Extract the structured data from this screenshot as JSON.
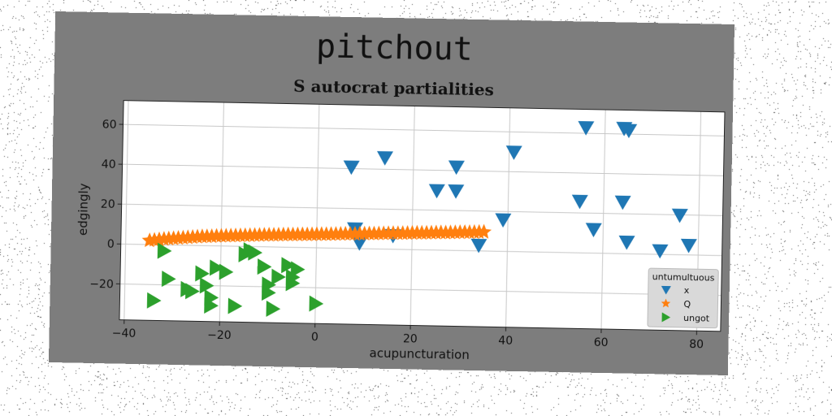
{
  "figure": {
    "suptitle": "pitchout"
  },
  "chart_data": {
    "type": "scatter",
    "title": "S autocrat partialities",
    "xlabel": "acupuncturation",
    "ylabel": "edgingly",
    "xlim": [
      -41,
      85
    ],
    "ylim": [
      -38,
      72
    ],
    "xticks": [
      -40,
      -20,
      0,
      20,
      40,
      60,
      80
    ],
    "yticks": [
      -20,
      0,
      20,
      40,
      60
    ],
    "grid": true,
    "legend": {
      "title": "untumultuous",
      "position": "bottom-right"
    },
    "series": [
      {
        "name": "x",
        "marker": "triangle-down",
        "color": "#1f77b4",
        "points": [
          [
            7,
            41
          ],
          [
            14,
            46
          ],
          [
            8,
            10
          ],
          [
            9,
            3
          ],
          [
            16,
            7
          ],
          [
            25,
            30
          ],
          [
            29,
            30
          ],
          [
            29,
            42
          ],
          [
            34,
            3
          ],
          [
            39,
            16
          ],
          [
            41,
            50
          ],
          [
            55,
            26
          ],
          [
            56,
            63
          ],
          [
            58,
            12
          ],
          [
            64,
            26
          ],
          [
            64,
            63
          ],
          [
            65,
            62
          ],
          [
            65,
            6
          ],
          [
            72,
            2
          ],
          [
            76,
            20
          ],
          [
            78,
            5
          ]
        ]
      },
      {
        "name": "Q",
        "marker": "star",
        "color": "#ff7f0e",
        "points": [
          [
            -35,
            2
          ],
          [
            -34,
            2.3
          ],
          [
            -33,
            2.6
          ],
          [
            -32,
            2.9
          ],
          [
            -31,
            3.1
          ],
          [
            -30,
            3.3
          ],
          [
            -29,
            3.5
          ],
          [
            -28,
            3.7
          ],
          [
            -27,
            3.9
          ],
          [
            -26,
            4.1
          ],
          [
            -25,
            4.3
          ],
          [
            -24,
            4.5
          ],
          [
            -23,
            4.6
          ],
          [
            -22,
            4.7
          ],
          [
            -21,
            4.9
          ],
          [
            -20,
            5.0
          ],
          [
            -19,
            5.1
          ],
          [
            -18,
            5.2
          ],
          [
            -17,
            5.3
          ],
          [
            -16,
            5.4
          ],
          [
            -15,
            5.5
          ],
          [
            -14,
            5.6
          ],
          [
            -13,
            5.7
          ],
          [
            -12,
            5.8
          ],
          [
            -11,
            5.9
          ],
          [
            -10,
            6.0
          ],
          [
            -9,
            6.0
          ],
          [
            -8,
            6.1
          ],
          [
            -7,
            6.2
          ],
          [
            -6,
            6.3
          ],
          [
            -5,
            6.3
          ],
          [
            -4,
            6.4
          ],
          [
            -3,
            6.5
          ],
          [
            -2,
            6.5
          ],
          [
            -1,
            6.6
          ],
          [
            0,
            6.7
          ],
          [
            1,
            6.8
          ],
          [
            2,
            6.8
          ],
          [
            3,
            6.9
          ],
          [
            4,
            7.0
          ],
          [
            5,
            7.1
          ],
          [
            6,
            7.2
          ],
          [
            7,
            7.2
          ],
          [
            8,
            7.3
          ],
          [
            9,
            7.4
          ],
          [
            10,
            7.5
          ],
          [
            11,
            7.6
          ],
          [
            12,
            7.6
          ],
          [
            13,
            7.7
          ],
          [
            14,
            7.8
          ],
          [
            15,
            7.9
          ],
          [
            16,
            8.0
          ],
          [
            17,
            8.0
          ],
          [
            18,
            8.1
          ],
          [
            19,
            8.2
          ],
          [
            20,
            8.3
          ],
          [
            21,
            8.4
          ],
          [
            22,
            8.4
          ],
          [
            23,
            8.5
          ],
          [
            24,
            8.6
          ],
          [
            25,
            8.7
          ],
          [
            26,
            8.8
          ],
          [
            27,
            8.8
          ],
          [
            28,
            8.9
          ],
          [
            29,
            9.0
          ],
          [
            30,
            9.1
          ],
          [
            31,
            9.2
          ],
          [
            32,
            9.2
          ],
          [
            33,
            9.3
          ],
          [
            34,
            9.4
          ],
          [
            35,
            9.5
          ]
        ]
      },
      {
        "name": "ungot",
        "marker": "triangle-right",
        "color": "#2ca02c",
        "points": [
          [
            -32,
            -3
          ],
          [
            -31,
            -17
          ],
          [
            -34,
            -28
          ],
          [
            -27,
            -22
          ],
          [
            -26,
            -23
          ],
          [
            -24,
            -14
          ],
          [
            -23,
            -20
          ],
          [
            -22,
            -26
          ],
          [
            -22,
            -30
          ],
          [
            -21,
            -11
          ],
          [
            -19,
            -13
          ],
          [
            -17,
            -30
          ],
          [
            -15,
            -4
          ],
          [
            -14,
            -2
          ],
          [
            -13,
            -3
          ],
          [
            -11,
            -10
          ],
          [
            -10,
            -23
          ],
          [
            -10,
            -19
          ],
          [
            -9,
            -31
          ],
          [
            -8,
            -15
          ],
          [
            -6,
            -9
          ],
          [
            -5,
            -15
          ],
          [
            -5,
            -18
          ],
          [
            -4,
            -11
          ],
          [
            0,
            -28
          ]
        ]
      }
    ]
  }
}
